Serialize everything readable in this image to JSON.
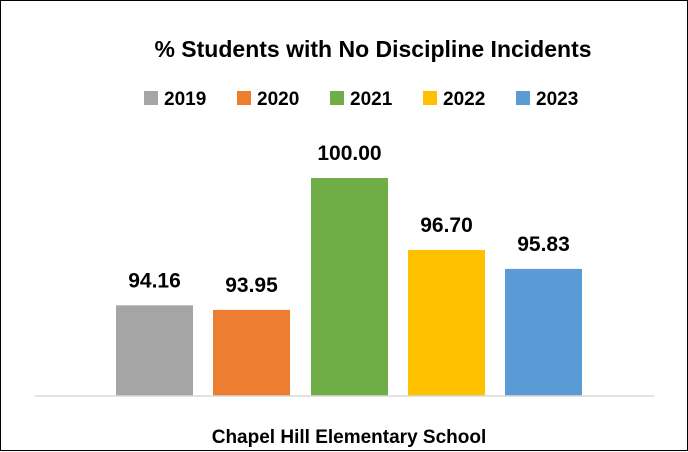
{
  "chart_data": {
    "type": "bar",
    "title": "% Students with No Discipline Incidents",
    "categories": [
      "Chapel Hill Elementary School"
    ],
    "series": [
      {
        "name": "2019",
        "color": "#A5A5A5",
        "values": [
          94.16
        ],
        "label": "94.16"
      },
      {
        "name": "2020",
        "color": "#ED7D31",
        "values": [
          93.95
        ],
        "label": "93.95"
      },
      {
        "name": "2021",
        "color": "#70AD47",
        "values": [
          100.0
        ],
        "label": "100.00"
      },
      {
        "name": "2022",
        "color": "#FFC000",
        "values": [
          96.7
        ],
        "label": "96.70"
      },
      {
        "name": "2023",
        "color": "#5B9BD5",
        "values": [
          95.83
        ],
        "label": "95.83"
      }
    ],
    "xlabel": "",
    "ylabel": "",
    "ylim": [
      90,
      100
    ],
    "grid": false,
    "legend": "top",
    "axis_color": "#D9D9D9"
  }
}
